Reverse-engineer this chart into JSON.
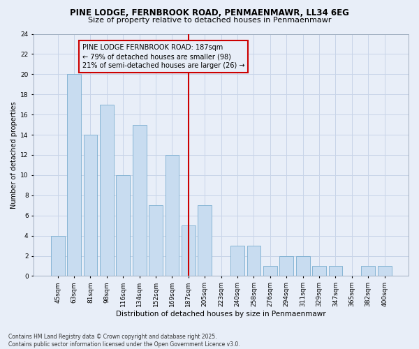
{
  "title1": "PINE LODGE, FERNBROOK ROAD, PENMAENMAWR, LL34 6EG",
  "title2": "Size of property relative to detached houses in Penmaenmawr",
  "xlabel": "Distribution of detached houses by size in Penmaenmawr",
  "ylabel": "Number of detached properties",
  "categories": [
    "45sqm",
    "63sqm",
    "81sqm",
    "98sqm",
    "116sqm",
    "134sqm",
    "152sqm",
    "169sqm",
    "187sqm",
    "205sqm",
    "223sqm",
    "240sqm",
    "258sqm",
    "276sqm",
    "294sqm",
    "311sqm",
    "329sqm",
    "347sqm",
    "365sqm",
    "382sqm",
    "400sqm"
  ],
  "values": [
    4,
    20,
    14,
    17,
    10,
    15,
    7,
    12,
    5,
    7,
    0,
    3,
    3,
    1,
    2,
    2,
    1,
    1,
    0,
    1,
    1
  ],
  "highlight_index": 8,
  "bar_color": "#c8dcf0",
  "bar_edge_color": "#7aaed0",
  "highlight_line_color": "#cc0000",
  "annotation_box_color": "#cc0000",
  "annotation_text": "PINE LODGE FERNBROOK ROAD: 187sqm\n← 79% of detached houses are smaller (98)\n21% of semi-detached houses are larger (26) →",
  "ylim": [
    0,
    24
  ],
  "yticks": [
    0,
    2,
    4,
    6,
    8,
    10,
    12,
    14,
    16,
    18,
    20,
    22,
    24
  ],
  "grid_color": "#c8d4e8",
  "background_color": "#e8eef8",
  "plot_bg_color": "#e8eef8",
  "footer_text": "Contains HM Land Registry data © Crown copyright and database right 2025.\nContains public sector information licensed under the Open Government Licence v3.0.",
  "title1_fontsize": 8.5,
  "title2_fontsize": 8.0,
  "xlabel_fontsize": 7.5,
  "ylabel_fontsize": 7.0,
  "tick_fontsize": 6.5,
  "annot_fontsize": 7.0,
  "footer_fontsize": 5.5
}
